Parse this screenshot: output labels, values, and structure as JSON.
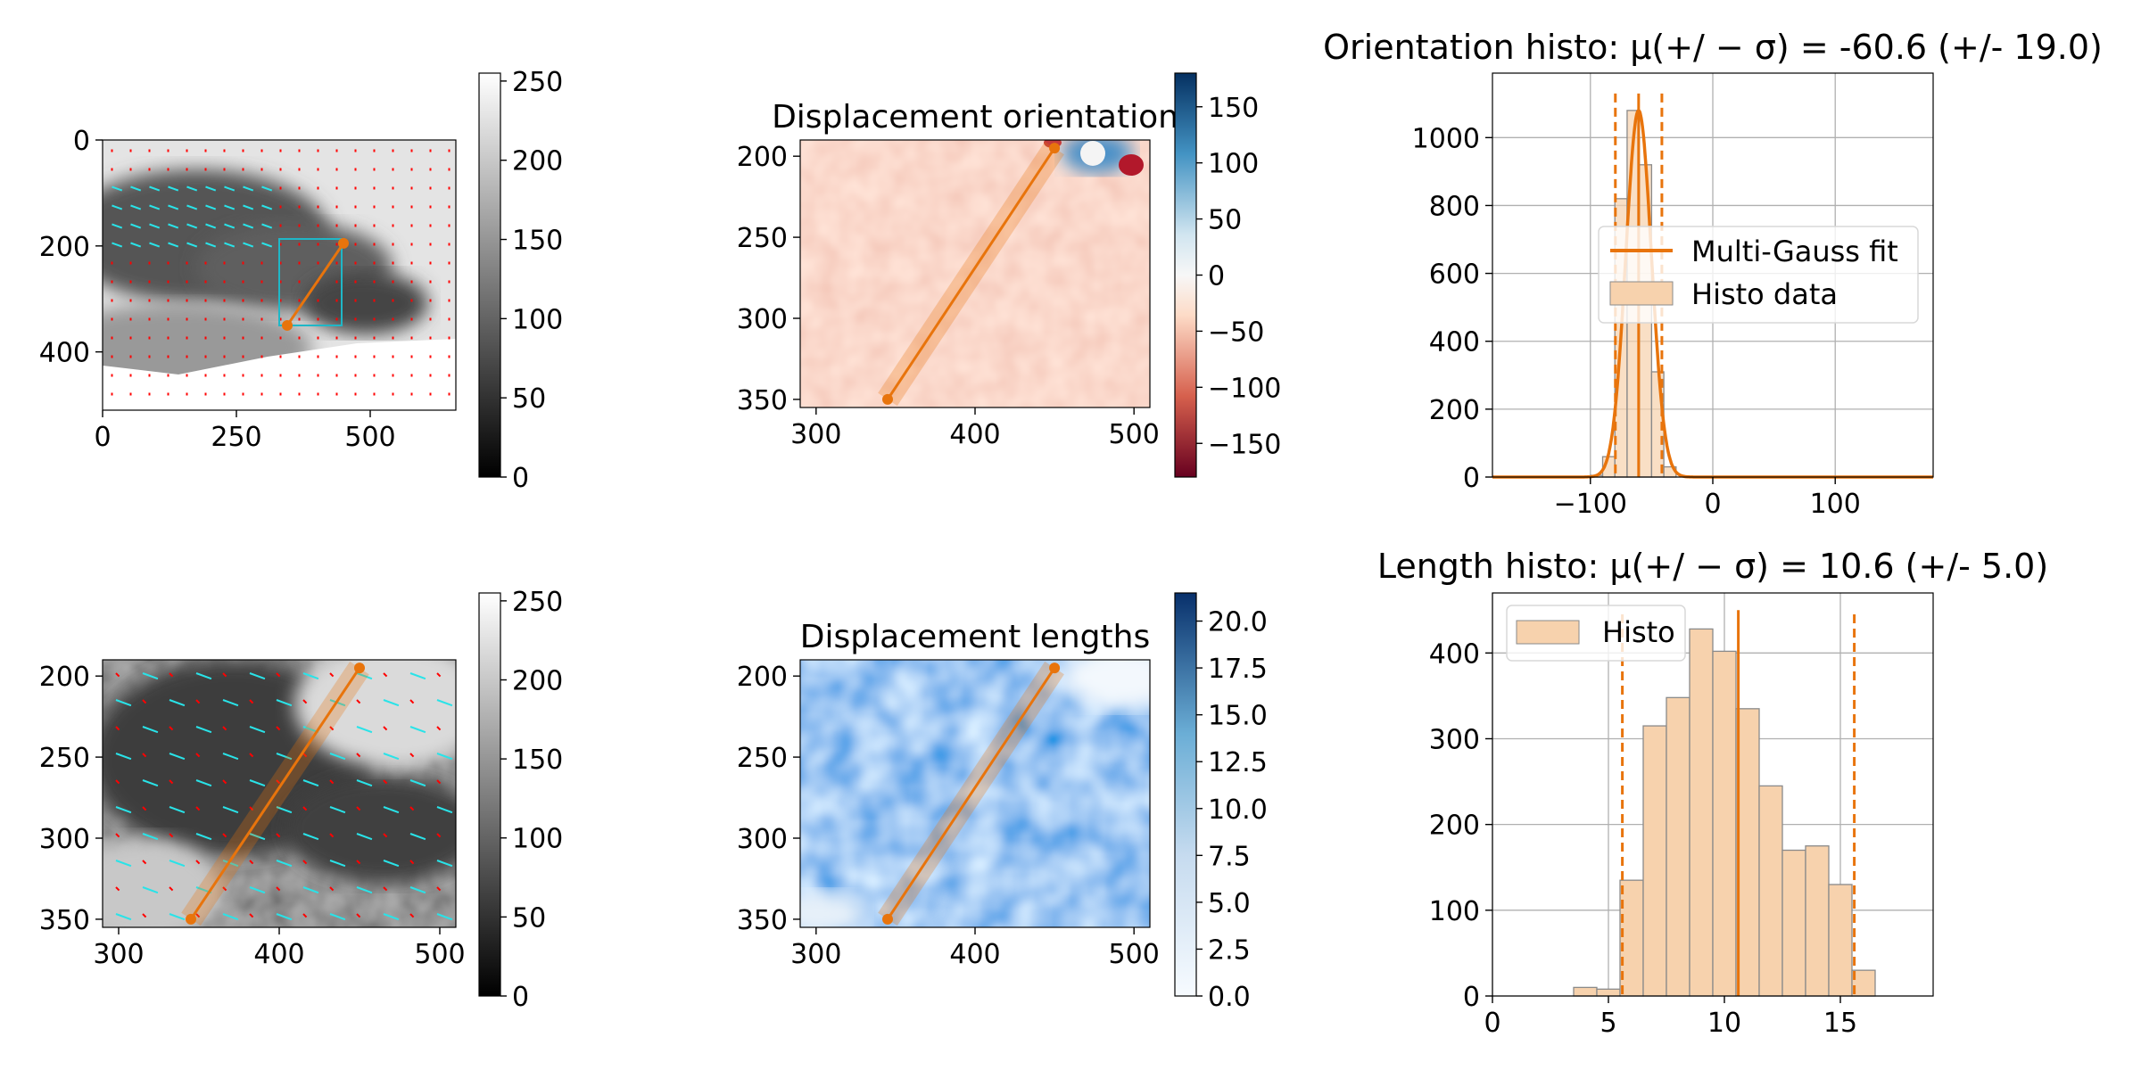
{
  "colors": {
    "accent": "#e8740c",
    "hist_fill": "#f7d2ad",
    "hist_edge": "#8a8a8a",
    "roi_box": "#1fb7c7",
    "vector_red": "#ff0000",
    "vector_cyan": "#29e3e8"
  },
  "chart_data": [
    {
      "id": "raw-full",
      "type": "heatmap",
      "x_ticks": [
        "0",
        "250",
        "500"
      ],
      "y_ticks": [
        "0",
        "200",
        "400"
      ],
      "xlim": [
        0,
        660
      ],
      "ylim": [
        510,
        0
      ],
      "colorbar": {
        "cmap": "gray",
        "range": [
          0,
          255
        ],
        "ticks": [
          "0",
          "50",
          "100",
          "150",
          "200",
          "250"
        ]
      },
      "roi_box": {
        "x0": 340,
        "x1": 450,
        "y0": 190,
        "y1": 355
      },
      "profile_line": {
        "x": [
          345,
          450
        ],
        "y": [
          350,
          195
        ]
      }
    },
    {
      "id": "displacement-orientation",
      "type": "heatmap",
      "title": "Displacement orientation",
      "x_ticks": [
        "300",
        "400",
        "500"
      ],
      "y_ticks": [
        "200",
        "250",
        "300",
        "350"
      ],
      "xlim": [
        290,
        510
      ],
      "ylim": [
        355,
        190
      ],
      "colorbar": {
        "cmap": "RdBu",
        "range": [
          -180,
          180
        ],
        "ticks": [
          "−150",
          "−100",
          "−50",
          "0",
          "50",
          "100",
          "150"
        ]
      },
      "profile_line": {
        "x": [
          345,
          450
        ],
        "y": [
          350,
          195
        ]
      }
    },
    {
      "id": "orientation-histogram",
      "type": "bar",
      "title": "Orientation histo: μ(+/ − σ) = -60.6 (+/- 19.0)",
      "x_ticks": [
        "−100",
        "0",
        "100"
      ],
      "y_ticks": [
        "0",
        "200",
        "400",
        "600",
        "800",
        "1000"
      ],
      "xlim": [
        -180,
        180
      ],
      "ylim": [
        0,
        1190
      ],
      "grid": true,
      "legend": {
        "position": "center-right",
        "entries": [
          "Multi-Gauss fit",
          "Histo data"
        ]
      },
      "bin_edges": [
        -100,
        -90,
        -80,
        -70,
        -60,
        -50,
        -40,
        -30
      ],
      "values": [
        5,
        60,
        820,
        1080,
        920,
        310,
        30
      ],
      "fit": {
        "mean": -60.6,
        "sigma": 19.0,
        "peak": 1080
      }
    },
    {
      "id": "raw-roi",
      "type": "heatmap",
      "x_ticks": [
        "300",
        "400",
        "500"
      ],
      "y_ticks": [
        "200",
        "250",
        "300",
        "350"
      ],
      "xlim": [
        290,
        510
      ],
      "ylim": [
        355,
        190
      ],
      "colorbar": {
        "cmap": "gray",
        "range": [
          0,
          255
        ],
        "ticks": [
          "0",
          "50",
          "100",
          "150",
          "200",
          "250"
        ]
      },
      "profile_line": {
        "x": [
          345,
          450
        ],
        "y": [
          350,
          195
        ]
      }
    },
    {
      "id": "displacement-lengths",
      "type": "heatmap",
      "title": "Displacement lengths",
      "x_ticks": [
        "300",
        "400",
        "500"
      ],
      "y_ticks": [
        "200",
        "250",
        "300",
        "350"
      ],
      "xlim": [
        290,
        510
      ],
      "ylim": [
        355,
        190
      ],
      "colorbar": {
        "cmap": "Blues",
        "range": [
          0,
          21.5
        ],
        "ticks": [
          "0.0",
          "2.5",
          "5.0",
          "7.5",
          "10.0",
          "12.5",
          "15.0",
          "17.5",
          "20.0"
        ]
      },
      "profile_line": {
        "x": [
          345,
          450
        ],
        "y": [
          350,
          195
        ]
      }
    },
    {
      "id": "length-histogram",
      "type": "bar",
      "title": "Length histo: μ(+/ − σ) = 10.6 (+/- 5.0)",
      "x_ticks": [
        "0",
        "5",
        "10",
        "15"
      ],
      "y_ticks": [
        "0",
        "100",
        "200",
        "300",
        "400"
      ],
      "xlim": [
        0,
        19
      ],
      "ylim": [
        0,
        470
      ],
      "grid": true,
      "legend": {
        "position": "top-left",
        "entries": [
          "Histo"
        ]
      },
      "bin_edges": [
        3.5,
        4.5,
        5.5,
        6.5,
        7.5,
        8.5,
        9.5,
        10.5,
        11.5,
        12.5,
        13.5,
        14.5,
        15.5,
        16.5
      ],
      "values": [
        10,
        8,
        135,
        315,
        348,
        428,
        402,
        335,
        245,
        170,
        175,
        130,
        30
      ],
      "lines": {
        "mean": 10.6,
        "minus_sigma": 5.6,
        "plus_sigma": 15.6
      }
    }
  ]
}
